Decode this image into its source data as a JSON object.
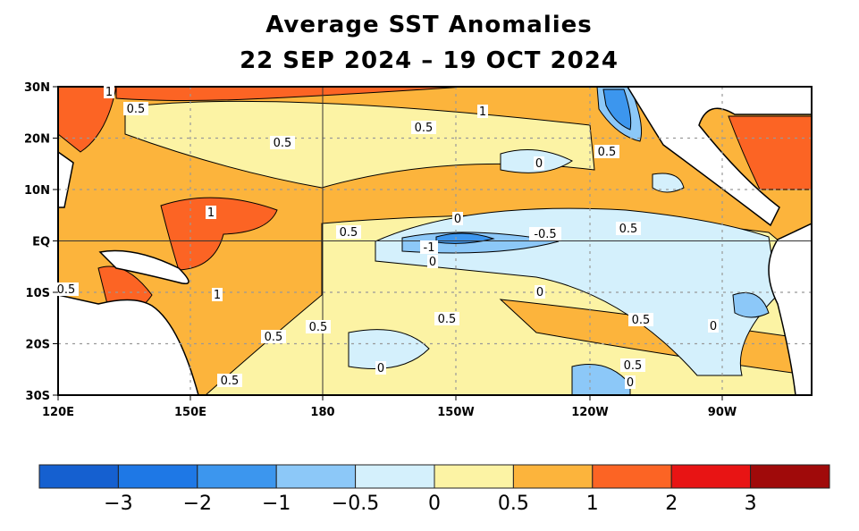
{
  "title": "Average SST Anomalies",
  "subtitle": "22 SEP 2024 – 19 OCT 2024",
  "lat_labels": [
    "30N",
    "20N",
    "10N",
    "EQ",
    "10S",
    "20S",
    "30S"
  ],
  "lon_labels": [
    "120E",
    "150E",
    "180",
    "150W",
    "120W",
    "90W"
  ],
  "colorbar": {
    "colors": [
      "#1560d0",
      "#1e78e6",
      "#3c96ee",
      "#8cc8f8",
      "#d4f0fc",
      "#fcf3a4",
      "#fcb43c",
      "#fc6424",
      "#e81414",
      "#a00a0a"
    ],
    "labels": [
      "−3",
      "−2",
      "−1",
      "−0.5",
      "0",
      "0.5",
      "1",
      "2",
      "3"
    ]
  },
  "contour_labels": [
    "1",
    "0.5",
    "0.5",
    "1",
    "0.5",
    "0.5",
    "1",
    "0",
    "0.5",
    "0",
    "-1",
    "0",
    "-0.5",
    "0.5",
    "0",
    "1",
    "0.5",
    "0.5",
    "0.5",
    "0.5",
    "0.5",
    "0",
    "0.5",
    "0",
    "0",
    "0.5"
  ]
}
